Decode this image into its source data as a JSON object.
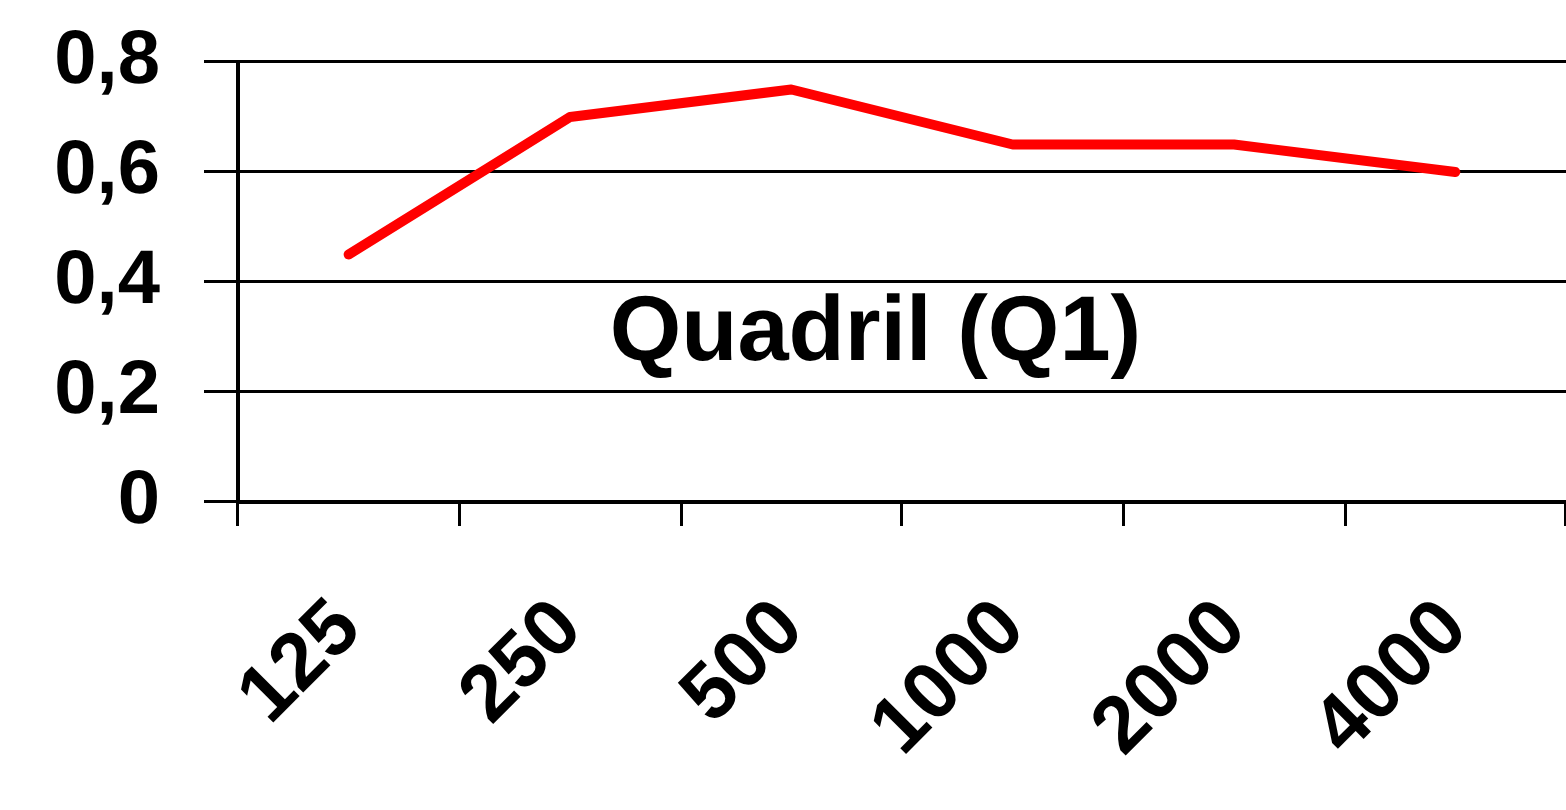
{
  "chart_data": {
    "type": "line",
    "title": "Quadril (Q1)",
    "categories": [
      "125",
      "250",
      "500",
      "1000",
      "2000",
      "4000"
    ],
    "values": [
      0.45,
      0.7,
      0.75,
      0.65,
      0.65,
      0.6
    ],
    "color": "#ff0000",
    "ylim": [
      0,
      0.8
    ],
    "yticks": [
      0,
      {
        "value": 0.2,
        "label": "0,2"
      },
      {
        "value": 0.4,
        "label": "0,4"
      },
      {
        "value": 0.6,
        "label": "0,6"
      },
      {
        "value": 0.8,
        "label": "0,8"
      }
    ],
    "grid": "y",
    "marker": "none",
    "line_style": "solid"
  }
}
